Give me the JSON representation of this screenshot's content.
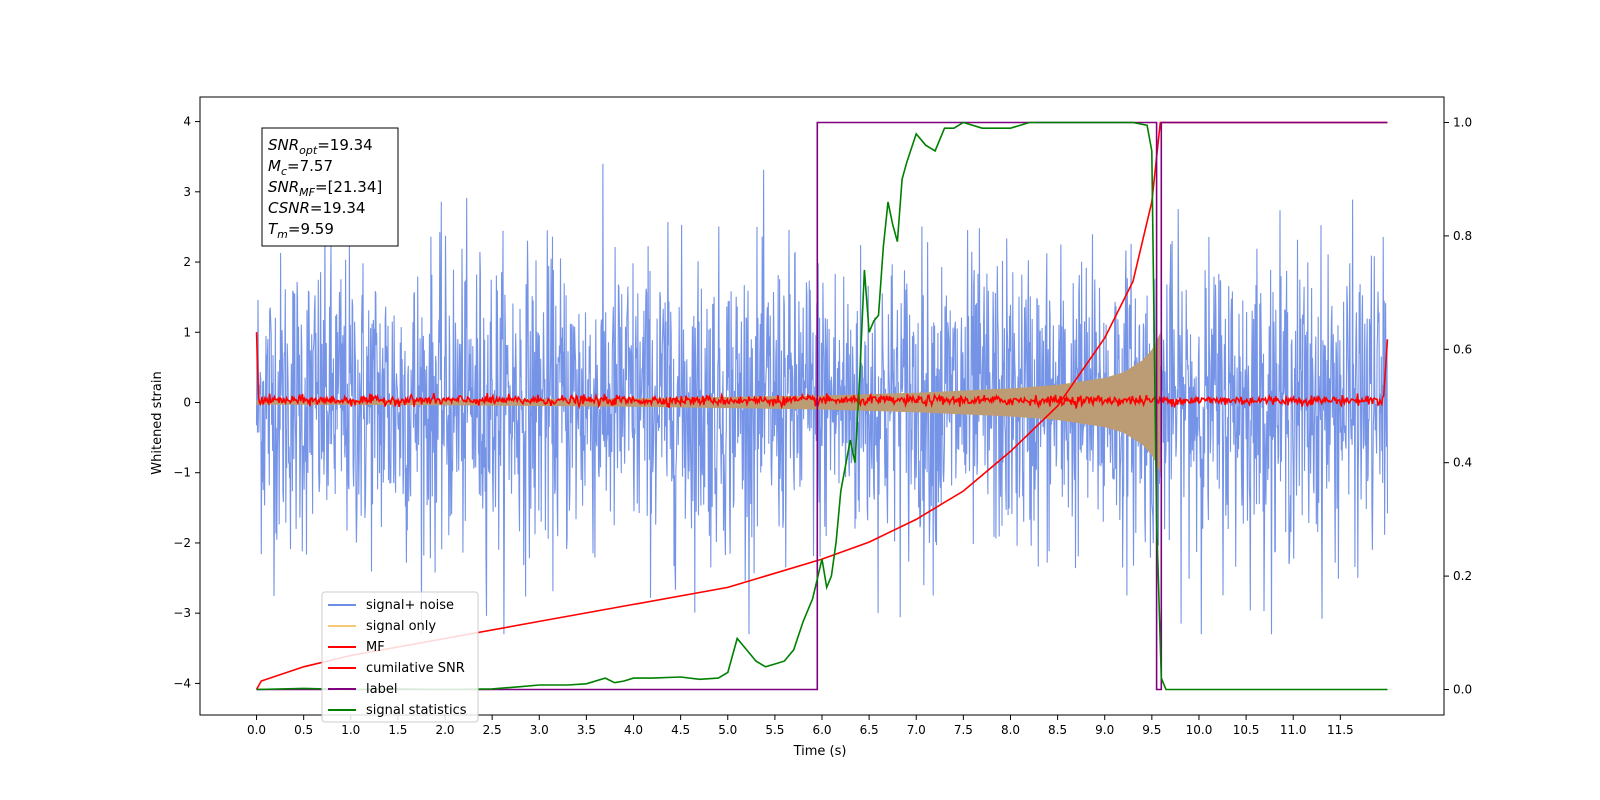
{
  "chart_data": {
    "type": "line",
    "title": "",
    "xlabel": "Time (s)",
    "ylabel": "Whitened strain",
    "xlim": [
      -0.6,
      12.6
    ],
    "ylim_left": [
      -4.45,
      4.35
    ],
    "ylim_right": [
      -0.045,
      1.045
    ],
    "x_ticks": [
      0.0,
      0.5,
      1.0,
      1.5,
      2.0,
      2.5,
      3.0,
      3.5,
      4.0,
      4.5,
      5.0,
      5.5,
      6.0,
      6.5,
      7.0,
      7.5,
      8.0,
      8.5,
      9.0,
      9.5,
      10.0,
      10.5,
      11.0,
      11.5
    ],
    "x_tick_labels": [
      "0.0",
      "0.5",
      "1.0",
      "1.5",
      "2.0",
      "2.5",
      "3.0",
      "3.5",
      "4.0",
      "4.5",
      "5.0",
      "5.5",
      "6.0",
      "6.5",
      "7.0",
      "7.5",
      "8.0",
      "8.5",
      "9.0",
      "9.5",
      "10.0",
      "10.5",
      "11.0",
      "11.5"
    ],
    "y_left_ticks": [
      -4,
      -3,
      -2,
      -1,
      0,
      1,
      2,
      3,
      4
    ],
    "y_left_tick_labels": [
      "−4",
      "−3",
      "−2",
      "−1",
      "0",
      "1",
      "2",
      "3",
      "4"
    ],
    "y_right_ticks": [
      0.0,
      0.2,
      0.4,
      0.6,
      0.8,
      1.0
    ],
    "y_right_tick_labels": [
      "0.0",
      "0.2",
      "0.4",
      "0.6",
      "0.8",
      "1.0"
    ],
    "annotation": [
      {
        "base": "SNR",
        "sub": "opt",
        "value": "=19.34"
      },
      {
        "base": "M",
        "sub": "c",
        "value": "=7.57"
      },
      {
        "base": "SNR",
        "sub": "MF",
        "value": "=[21.34]"
      },
      {
        "base": "CSNR",
        "sub": "",
        "value": "=19.34"
      },
      {
        "base": "T",
        "sub": "m",
        "value": "=9.59"
      }
    ],
    "legend_position": "lower-left",
    "legend": [
      {
        "label": "signal+ noise",
        "color": "#6f8ee6"
      },
      {
        "label": "signal only",
        "color": "#f5c87a"
      },
      {
        "label": "MF",
        "color": "#ff0000"
      },
      {
        "label": "cumilative SNR",
        "color": "#ff0000"
      },
      {
        "label": "label",
        "color": "#800080"
      },
      {
        "label": "signal statistics",
        "color": "#008000"
      }
    ],
    "series": [
      {
        "name": "signal+ noise",
        "axis": "left",
        "color": "#6f8ee6",
        "x_range": [
          0,
          12
        ],
        "envelope_y": [
          -3.3,
          3.4
        ]
      },
      {
        "name": "signal only",
        "axis": "left",
        "color": "#bc9c74",
        "x": [
          0,
          1,
          2,
          3,
          4,
          5,
          6,
          7,
          8,
          8.5,
          9,
          9.2,
          9.4,
          9.5,
          9.55,
          9.59
        ],
        "amplitude": [
          0.03,
          0.035,
          0.04,
          0.05,
          0.06,
          0.08,
          0.1,
          0.14,
          0.2,
          0.25,
          0.35,
          0.43,
          0.6,
          0.75,
          0.88,
          1.0
        ]
      },
      {
        "name": "MF",
        "axis": "left",
        "color": "#ff0000",
        "baseline": 0.0,
        "start_value": 1.0,
        "end_value": 0.9
      },
      {
        "name": "cumilative SNR",
        "axis": "right",
        "color": "#ff0000",
        "x": [
          0,
          0.05,
          0.5,
          1,
          2,
          3,
          4,
          5,
          6,
          6.5,
          7,
          7.5,
          8,
          8.5,
          9,
          9.3,
          9.5,
          9.59,
          9.6,
          12
        ],
        "y": [
          0.0,
          0.015,
          0.04,
          0.06,
          0.09,
          0.12,
          0.15,
          0.18,
          0.23,
          0.26,
          0.3,
          0.35,
          0.42,
          0.5,
          0.62,
          0.72,
          0.86,
          1.0,
          1.0,
          1.0
        ]
      },
      {
        "name": "label",
        "axis": "right",
        "color": "#800080",
        "x": [
          0,
          5.95,
          5.95,
          9.55,
          9.55,
          9.6,
          9.6,
          12
        ],
        "y": [
          0,
          0,
          1,
          1,
          0,
          0,
          1,
          1
        ]
      },
      {
        "name": "signal statistics",
        "axis": "right",
        "color": "#008000",
        "x": [
          0,
          0.5,
          1,
          1.5,
          2,
          2.5,
          2.8,
          3,
          3.3,
          3.5,
          3.7,
          3.8,
          3.9,
          4,
          4.2,
          4.5,
          4.7,
          4.9,
          5.0,
          5.1,
          5.2,
          5.3,
          5.4,
          5.5,
          5.6,
          5.7,
          5.8,
          5.9,
          6.0,
          6.05,
          6.1,
          6.15,
          6.2,
          6.3,
          6.35,
          6.4,
          6.45,
          6.5,
          6.55,
          6.6,
          6.65,
          6.7,
          6.75,
          6.8,
          6.85,
          6.9,
          7.0,
          7.1,
          7.2,
          7.3,
          7.4,
          7.5,
          7.7,
          8.0,
          8.2,
          8.5,
          9.0,
          9.3,
          9.45,
          9.5,
          9.55,
          9.6,
          9.65,
          9.7,
          10,
          11,
          12
        ],
        "y": [
          0.0,
          0.002,
          0.0,
          0.001,
          0.0,
          0.001,
          0.005,
          0.008,
          0.008,
          0.01,
          0.02,
          0.012,
          0.015,
          0.02,
          0.02,
          0.022,
          0.018,
          0.02,
          0.03,
          0.09,
          0.07,
          0.05,
          0.04,
          0.045,
          0.05,
          0.07,
          0.12,
          0.16,
          0.23,
          0.18,
          0.2,
          0.26,
          0.35,
          0.44,
          0.4,
          0.55,
          0.74,
          0.63,
          0.65,
          0.66,
          0.78,
          0.86,
          0.82,
          0.79,
          0.9,
          0.93,
          0.98,
          0.96,
          0.95,
          0.99,
          0.99,
          1.0,
          0.99,
          0.99,
          1.0,
          1.0,
          1.0,
          1.0,
          0.995,
          0.95,
          0.3,
          0.02,
          0.0,
          0.0,
          0.0,
          0.0,
          0.0
        ]
      }
    ]
  }
}
